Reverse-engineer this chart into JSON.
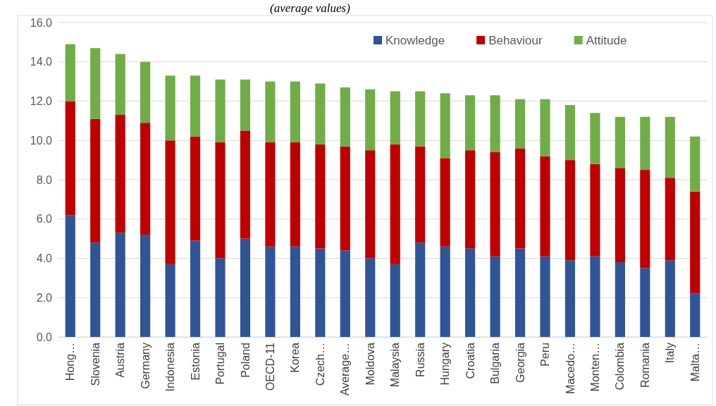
{
  "chart_data": {
    "type": "bar",
    "stacked": true,
    "subtitle": "(average values)",
    "categories": [
      "Hong…",
      "Slovenia",
      "Austria",
      "Germany",
      "Indonesia",
      "Estonia",
      "Portugal",
      "Poland",
      "OECD-11",
      "Korea",
      "Czech…",
      "Average…",
      "Moldova",
      "Malaysia",
      "Russia",
      "Hungary",
      "Croatia",
      "Bulgaria",
      "Georgia",
      "Peru",
      "Macedo…",
      "Monten…",
      "Colombia",
      "Romania",
      "Italy",
      "Malta…"
    ],
    "series": [
      {
        "name": "Knowledge",
        "color": "#2f5597",
        "values": [
          6.2,
          4.8,
          5.3,
          5.2,
          3.7,
          4.9,
          4.0,
          5.0,
          4.6,
          4.6,
          4.5,
          4.4,
          4.0,
          3.7,
          4.8,
          4.6,
          4.5,
          4.1,
          4.5,
          4.1,
          3.9,
          4.1,
          3.8,
          3.5,
          3.9,
          2.2
        ]
      },
      {
        "name": "Behaviour",
        "color": "#c00000",
        "values": [
          5.8,
          6.3,
          6.0,
          5.7,
          6.3,
          5.3,
          5.9,
          5.5,
          5.3,
          5.3,
          5.3,
          5.3,
          5.5,
          6.1,
          4.9,
          4.5,
          5.0,
          5.3,
          5.1,
          5.1,
          5.1,
          4.7,
          4.8,
          5.0,
          4.2,
          5.2
        ]
      },
      {
        "name": "Attitude",
        "color": "#70ad47",
        "values": [
          2.9,
          3.6,
          3.1,
          3.1,
          3.3,
          3.1,
          3.2,
          2.6,
          3.1,
          3.1,
          3.1,
          3.0,
          3.1,
          2.7,
          2.8,
          3.3,
          2.8,
          2.9,
          2.5,
          2.9,
          2.8,
          2.6,
          2.6,
          2.7,
          3.1,
          2.8
        ]
      }
    ],
    "ylim": [
      0,
      16
    ],
    "yticks": [
      {
        "value": 0,
        "label": "0.0"
      },
      {
        "value": 2,
        "label": "2.0"
      },
      {
        "value": 4,
        "label": "4.0"
      },
      {
        "value": 6,
        "label": "6.0"
      },
      {
        "value": 8,
        "label": "8.0"
      },
      {
        "value": 10,
        "label": "10.0"
      },
      {
        "value": 12,
        "label": "12.0"
      },
      {
        "value": 14,
        "label": "14.0"
      },
      {
        "value": 16,
        "label": "16.0"
      }
    ],
    "grid": "y",
    "legend": "top right"
  }
}
